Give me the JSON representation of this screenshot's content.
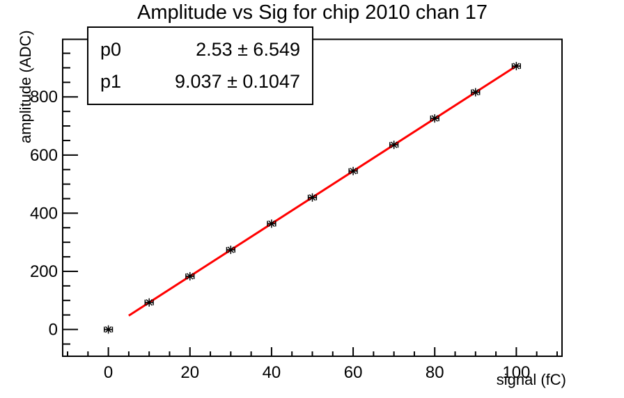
{
  "title": "Amplitude vs Sig for chip 2010 chan 17",
  "stats_box": {
    "rows": [
      {
        "name": "p0",
        "value": "2.53 ± 6.549"
      },
      {
        "name": "p1",
        "value": "9.037 ± 0.1047"
      }
    ]
  },
  "chart_data": {
    "type": "scatter",
    "title": "Amplitude vs Sig for chip 2010 chan 17",
    "xlabel": "signal (fC)",
    "ylabel": "amplitude (ADC)",
    "x": [
      0,
      10,
      20,
      30,
      40,
      50,
      60,
      70,
      80,
      90,
      100
    ],
    "y": [
      0,
      93,
      183,
      274,
      364,
      454,
      545,
      635,
      726,
      816,
      906
    ],
    "x_error": 1,
    "marker": "asterisk",
    "marker_color": "#000000",
    "fit": {
      "type": "linear",
      "p0": 2.53,
      "p0_error": 6.549,
      "p1": 9.037,
      "p1_error": 0.1047,
      "x_start": 5,
      "x_end": 100.4,
      "color": "#ff0000"
    },
    "xlim": [
      -11.2,
      111.2
    ],
    "ylim": [
      -92,
      998
    ],
    "x_major_ticks": [
      0,
      20,
      40,
      60,
      80,
      100
    ],
    "x_minor_step": 5,
    "y_major_ticks": [
      0,
      200,
      400,
      600,
      800
    ],
    "y_minor_step": 50,
    "grid": false,
    "legend": false
  },
  "colors": {
    "background": "#ffffff",
    "frame": "#000000",
    "text": "#000000",
    "fit_line": "#ff0000"
  }
}
